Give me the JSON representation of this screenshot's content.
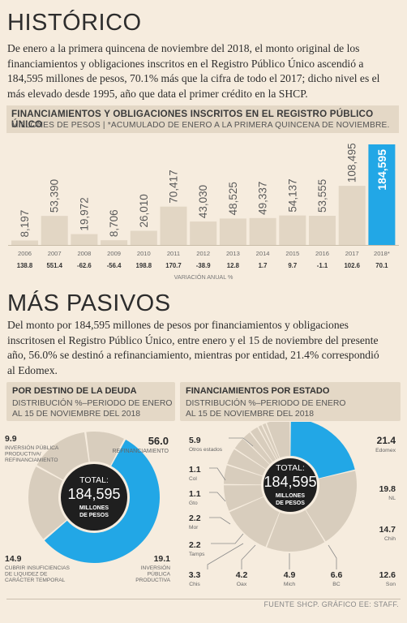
{
  "historico": {
    "title": "HISTÓRICO",
    "lines": [
      "De enero a la primera quincena de noviembre del 2018, el monto original de los",
      "financiamientos y obligaciones inscritos en el Registro Público Único ascendió a",
      "184,595 millones de pesos, 70.1% más que la cifra de todo el 2017; dicho nivel es el",
      "más elevado desde 1995, año que data el primer crédito en la SHCP."
    ],
    "chart_title": "FINANCIAMIENTOS Y OBLIGACIONES INSCRITOS EN EL REGISTRO PÚBLICO ÚNICO",
    "chart_subtitle": "MILLONES DE PESOS | *ACUMULADO DE ENERO A LA PRIMERA QUINCENA DE NOVIEMBRE."
  },
  "mas_pasivos": {
    "title": "MÁS PASIVOS",
    "lines": [
      "Del monto por 184,595 millones de pesos por financiamientos y obligaciones",
      "inscritosen el Registro Público Único, entre enero y el 15 de noviembre del presente",
      "año, 56.0% se destinó a refinanciamiento, mientras por entidad, 21.4% correspondió",
      "al Edomex."
    ]
  },
  "panel_left": {
    "title": "POR DESTINO DE LA DEUDA",
    "sub1": "DISTRIBUCIÓN %–PERIODO DE ENERO",
    "sub2": "AL 15 DE NOVIEMBRE DEL 2018"
  },
  "panel_right": {
    "title": "FINANCIAMIENTOS POR ESTADO",
    "sub1": "DISTRIBUCIÓN %–PERIODO DE ENERO",
    "sub2": "AL 15 DE NOVIEMBRE DEL 2018"
  },
  "center_total": {
    "label": "TOTAL:",
    "value": "184,595",
    "unit1": "MILLONES",
    "unit2": "DE PESOS"
  },
  "colors": {
    "accent": "#22a7e6",
    "bar": "#e2d6c4",
    "donut_other": "#d8cdbd",
    "background": "#f6ecde",
    "dark": "#1f1f1f"
  },
  "footer": "FUENTE SHCP. GRÁFICO EE: STAFF.",
  "chart_data": [
    {
      "type": "bar",
      "title": "FINANCIAMIENTOS Y OBLIGACIONES INSCRITOS EN EL REGISTRO PÚBLICO ÚNICO",
      "ylabel": "MILLONES DE PESOS",
      "categories": [
        "2006",
        "2007",
        "2008",
        "2009",
        "2010",
        "2011",
        "2012",
        "2013",
        "2014",
        "2015",
        "2016",
        "2017",
        "2018*"
      ],
      "values": [
        8197,
        53390,
        19972,
        8706,
        26010,
        70417,
        43030,
        48525,
        49337,
        54137,
        53555,
        108495,
        184595
      ],
      "value_labels": [
        "8,197",
        "53,390",
        "19,972",
        "8,706",
        "26,010",
        "70,417",
        "43,030",
        "48,525",
        "49,337",
        "54,137",
        "53,555",
        "108,495",
        "184,595"
      ],
      "variation_label": "VARIACIÓN ANUAL %",
      "variation": [
        "138.8",
        "551.4",
        "-62.6",
        "-56.4",
        "198.8",
        "170.7",
        "-38.9",
        "12.8",
        "1.7",
        "9.7",
        "-1.1",
        "102.6",
        "70.1"
      ],
      "highlight_index": 12,
      "ylim": [
        0,
        184595
      ]
    },
    {
      "type": "pie",
      "title": "POR DESTINO DE LA DEUDA",
      "slices": [
        {
          "value": 56.0,
          "value_label": "56.0",
          "label": "REFINANCIAMIENTO",
          "highlight": true
        },
        {
          "value": 19.1,
          "value_label": "19.1",
          "label": "INVERSIÓN PÚBLICA PRODUCTIVA"
        },
        {
          "value": 14.9,
          "value_label": "14.9",
          "label": "CUBRIR INSUFICIENCIAS DE LIQUIDEZ DE CARÁCTER TEMPORAL"
        },
        {
          "value": 9.9,
          "value_label": "9.9",
          "label": "INVERSIÓN PÚBLICA PRODUCTIVA/ REFINANCIAMIENTO"
        }
      ]
    },
    {
      "type": "pie",
      "title": "FINANCIAMIENTOS POR ESTADO",
      "slices": [
        {
          "value": 21.4,
          "value_label": "21.4",
          "label": "Edomex",
          "highlight": true
        },
        {
          "value": 19.8,
          "value_label": "19.8",
          "label": "NL"
        },
        {
          "value": 14.7,
          "value_label": "14.7",
          "label": "Chih"
        },
        {
          "value": 12.6,
          "value_label": "12.6",
          "label": "Son"
        },
        {
          "value": 6.6,
          "value_label": "6.6",
          "label": "BC"
        },
        {
          "value": 4.9,
          "value_label": "4.9",
          "label": "Mich"
        },
        {
          "value": 4.2,
          "value_label": "4.2",
          "label": "Oax"
        },
        {
          "value": 3.3,
          "value_label": "3.3",
          "label": "Chis"
        },
        {
          "value": 2.2,
          "value_label": "2.2",
          "label": "Tamps"
        },
        {
          "value": 2.2,
          "value_label": "2.2",
          "label": "Mor"
        },
        {
          "value": 1.1,
          "value_label": "1.1",
          "label": "Gto"
        },
        {
          "value": 1.1,
          "value_label": "1.1",
          "label": "Col"
        },
        {
          "value": 5.9,
          "value_label": "5.9",
          "label": "Otros estados"
        }
      ]
    }
  ]
}
